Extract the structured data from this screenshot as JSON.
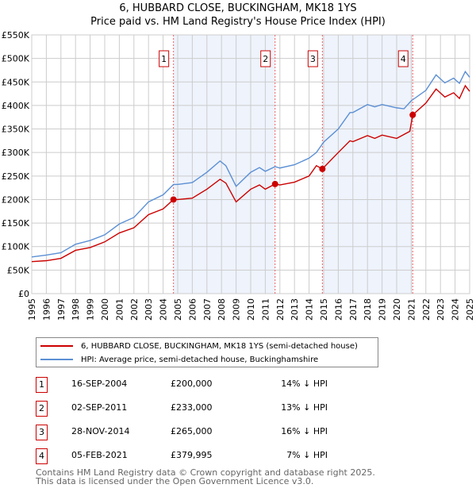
{
  "title": "6, HUBBARD CLOSE, BUCKINGHAM, MK18 1YS",
  "subtitle": "Price paid vs. HM Land Registry's House Price Index (HPI)",
  "chart_data": {
    "type": "line",
    "xlim": [
      1995,
      2025
    ],
    "ylim": [
      0,
      550000
    ],
    "y_ticks": [
      {
        "v": 0,
        "label": "£0"
      },
      {
        "v": 50000,
        "label": "£50K"
      },
      {
        "v": 100000,
        "label": "£100K"
      },
      {
        "v": 150000,
        "label": "£150K"
      },
      {
        "v": 200000,
        "label": "£200K"
      },
      {
        "v": 250000,
        "label": "£250K"
      },
      {
        "v": 300000,
        "label": "£300K"
      },
      {
        "v": 350000,
        "label": "£350K"
      },
      {
        "v": 400000,
        "label": "£400K"
      },
      {
        "v": 450000,
        "label": "£450K"
      },
      {
        "v": 500000,
        "label": "£500K"
      },
      {
        "v": 550000,
        "label": "£550K"
      }
    ],
    "x_ticks": [
      "1995",
      "1996",
      "1997",
      "1998",
      "1999",
      "2000",
      "2001",
      "2002",
      "2003",
      "2004",
      "2005",
      "2006",
      "2007",
      "2008",
      "2009",
      "2010",
      "2011",
      "2012",
      "2013",
      "2014",
      "2015",
      "2016",
      "2017",
      "2018",
      "2019",
      "2020",
      "2021",
      "2022",
      "2023",
      "2024",
      "2025"
    ],
    "series": [
      {
        "name": "6, HUBBARD CLOSE, BUCKINGHAM, MK18 1YS (semi-detached house)",
        "color": "#cc0000",
        "x": [
          1995,
          1996,
          1997,
          1998,
          1999,
          2000,
          2001,
          2002,
          2003,
          2004,
          2004.71,
          2005,
          2006,
          2007,
          2007.9,
          2008.3,
          2009,
          2010,
          2010.6,
          2011,
          2011.67,
          2012,
          2013,
          2014,
          2014.5,
          2014.91,
          2015,
          2016,
          2016.8,
          2017,
          2018,
          2018.5,
          2019,
          2020,
          2020.9,
          2021.1,
          2022,
          2022.7,
          2023.3,
          2023.9,
          2024.3,
          2024.7,
          2025
        ],
        "y": [
          68000,
          70000,
          75000,
          92000,
          98000,
          110000,
          129000,
          140000,
          168000,
          180000,
          200000,
          200000,
          203000,
          222000,
          243000,
          235000,
          195000,
          222000,
          231000,
          222000,
          233000,
          231000,
          237000,
          250000,
          272000,
          265000,
          268000,
          300000,
          325000,
          323000,
          336000,
          330000,
          337000,
          330000,
          345000,
          380000,
          405000,
          435000,
          418000,
          427000,
          415000,
          442000,
          430000
        ]
      },
      {
        "name": "HPI: Average price, semi-detached house, Buckinghamshire",
        "color": "#5b8fd4",
        "x": [
          1995,
          1996,
          1997,
          1998,
          1999,
          2000,
          2001,
          2002,
          2003,
          2004,
          2004.71,
          2005,
          2006,
          2007,
          2007.9,
          2008.3,
          2009,
          2010,
          2010.6,
          2011,
          2011.67,
          2012,
          2013,
          2014,
          2014.5,
          2015,
          2016,
          2016.8,
          2017,
          2018,
          2018.5,
          2019,
          2020,
          2020.5,
          2021,
          2022,
          2022.7,
          2023.3,
          2023.9,
          2024.3,
          2024.7,
          2025
        ],
        "y": [
          78000,
          82000,
          87000,
          105000,
          113000,
          125000,
          148000,
          162000,
          195000,
          210000,
          232000,
          232000,
          236000,
          258000,
          282000,
          272000,
          228000,
          258000,
          268000,
          260000,
          270000,
          267000,
          274000,
          288000,
          300000,
          322000,
          350000,
          385000,
          385000,
          402000,
          397000,
          402000,
          395000,
          393000,
          410000,
          432000,
          465000,
          448000,
          458000,
          447000,
          472000,
          460000
        ]
      }
    ],
    "sales": [
      {
        "id": "1",
        "x": 2004.71,
        "date": "16-SEP-2004",
        "price": 200000,
        "price_label": "£200,000",
        "hpi": "14% ↓ HPI"
      },
      {
        "id": "2",
        "x": 2011.67,
        "date": "02-SEP-2011",
        "price": 233000,
        "price_label": "£233,000",
        "hpi": "13% ↓ HPI"
      },
      {
        "id": "3",
        "x": 2014.91,
        "date": "28-NOV-2014",
        "price": 265000,
        "price_label": "£265,000",
        "hpi": "16% ↓ HPI"
      },
      {
        "id": "4",
        "x": 2021.1,
        "date": "05-FEB-2021",
        "price": 379995,
        "price_label": "£379,995",
        "hpi": "7% ↓ HPI"
      }
    ]
  },
  "footer": [
    "Contains HM Land Registry data © Crown copyright and database right 2025.",
    "This data is licensed under the Open Government Licence v3.0."
  ]
}
